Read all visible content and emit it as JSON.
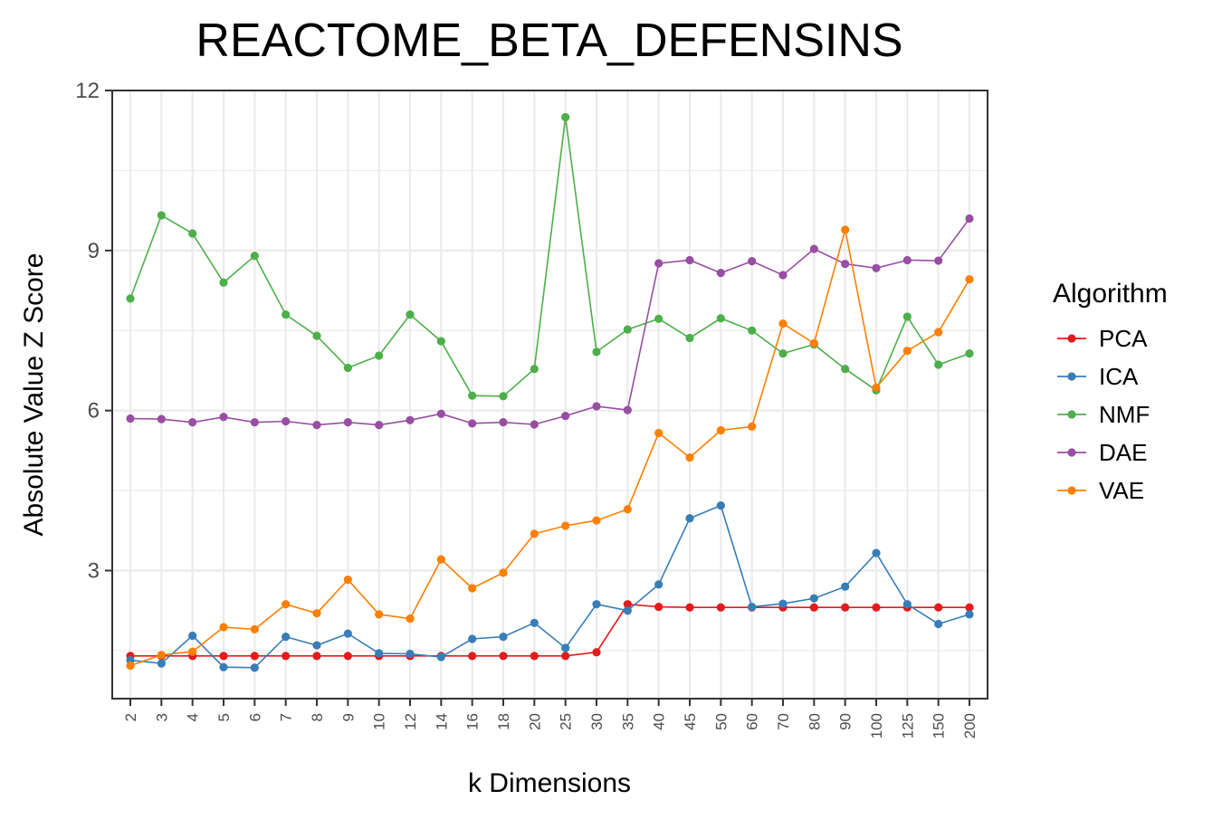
{
  "chart_data": {
    "type": "line",
    "title": "REACTOME_BETA_DEFENSINS",
    "xlabel": "k Dimensions",
    "ylabel": "Absolute Value Z Score",
    "categories": [
      "2",
      "3",
      "4",
      "5",
      "6",
      "7",
      "8",
      "9",
      "10",
      "12",
      "14",
      "16",
      "18",
      "20",
      "25",
      "30",
      "35",
      "40",
      "45",
      "50",
      "60",
      "70",
      "80",
      "90",
      "100",
      "125",
      "150",
      "200"
    ],
    "yticks": [
      3,
      6,
      9,
      12
    ],
    "ylim": [
      0.6,
      12
    ],
    "grid": true,
    "legend": {
      "title": "Algorithm",
      "position": "right"
    },
    "series": [
      {
        "name": "PCA",
        "color": "#e41a1c",
        "values": [
          1.4,
          1.4,
          1.4,
          1.4,
          1.4,
          1.4,
          1.4,
          1.4,
          1.4,
          1.4,
          1.4,
          1.4,
          1.4,
          1.4,
          1.4,
          1.47,
          2.37,
          2.32,
          2.31,
          2.31,
          2.31,
          2.31,
          2.31,
          2.31,
          2.31,
          2.31,
          2.31,
          2.31
        ]
      },
      {
        "name": "ICA",
        "color": "#377eb8",
        "values": [
          1.32,
          1.26,
          1.78,
          1.19,
          1.18,
          1.76,
          1.6,
          1.82,
          1.45,
          1.44,
          1.38,
          1.72,
          1.76,
          2.02,
          1.55,
          2.37,
          2.25,
          2.74,
          3.98,
          4.22,
          2.32,
          2.38,
          2.48,
          2.7,
          3.33,
          2.37,
          2.0,
          2.18
        ]
      },
      {
        "name": "NMF",
        "color": "#4daf4a",
        "values": [
          8.1,
          9.66,
          9.32,
          8.4,
          8.9,
          7.8,
          7.4,
          6.8,
          7.03,
          7.8,
          7.3,
          6.28,
          6.27,
          6.78,
          11.5,
          7.1,
          7.52,
          7.72,
          7.36,
          7.73,
          7.5,
          7.07,
          7.24,
          6.78,
          6.38,
          7.76,
          6.86,
          7.07
        ]
      },
      {
        "name": "DAE",
        "color": "#984ea3",
        "values": [
          5.85,
          5.84,
          5.78,
          5.88,
          5.78,
          5.8,
          5.73,
          5.78,
          5.73,
          5.82,
          5.94,
          5.76,
          5.78,
          5.74,
          5.9,
          6.08,
          6.01,
          8.76,
          8.82,
          8.58,
          8.8,
          8.54,
          9.03,
          8.75,
          8.67,
          8.82,
          8.81,
          9.6
        ]
      },
      {
        "name": "VAE",
        "color": "#ff7f00",
        "values": [
          1.22,
          1.42,
          1.48,
          1.94,
          1.9,
          2.37,
          2.2,
          2.83,
          2.18,
          2.1,
          3.21,
          2.67,
          2.96,
          3.69,
          3.84,
          3.94,
          4.15,
          5.58,
          5.12,
          5.63,
          5.7,
          7.63,
          7.26,
          9.39,
          6.43,
          7.12,
          7.47,
          8.46
        ]
      }
    ]
  }
}
